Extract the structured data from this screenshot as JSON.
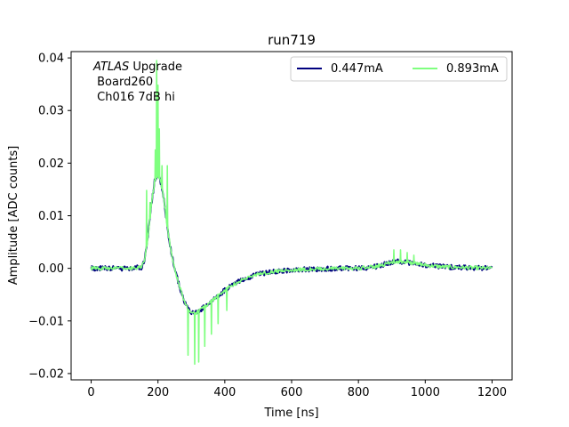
{
  "chart_data": {
    "type": "line",
    "title": "run719",
    "xlabel": "Time [ns]",
    "ylabel": "Amplitude [ADC counts]",
    "xlim": [
      -60,
      1260
    ],
    "ylim": [
      -0.0212,
      0.0412
    ],
    "xticks": [
      0,
      200,
      400,
      600,
      800,
      1000,
      1200
    ],
    "xtick_labels": [
      "0",
      "200",
      "400",
      "600",
      "800",
      "1000",
      "1200"
    ],
    "yticks": [
      -0.02,
      -0.01,
      0.0,
      0.01,
      0.02,
      0.03,
      0.04
    ],
    "ytick_labels": [
      "−0.02",
      "−0.01",
      "0.00",
      "0.01",
      "0.02",
      "0.03",
      "0.04"
    ],
    "grid": false,
    "legend_position": "top-right",
    "annotation": {
      "italic": "ATLAS",
      "rest": " Upgrade",
      "line2": " Board260",
      "line3": " Ch016 7dB hi"
    },
    "series": [
      {
        "name": "0.447mA",
        "color": "#00007f",
        "x": [
          0,
          50,
          100,
          150,
          160,
          170,
          180,
          190,
          200,
          210,
          220,
          230,
          240,
          250,
          260,
          270,
          280,
          290,
          300,
          310,
          320,
          330,
          340,
          350,
          360,
          380,
          400,
          420,
          440,
          460,
          480,
          500,
          550,
          600,
          650,
          700,
          750,
          800,
          850,
          880,
          900,
          920,
          950,
          1000,
          1050,
          1100,
          1150,
          1200
        ],
        "y": [
          0.0,
          0.0,
          0.0,
          0.0002,
          0.0015,
          0.006,
          0.012,
          0.0165,
          0.0178,
          0.016,
          0.012,
          0.007,
          0.003,
          0.0,
          -0.0025,
          -0.0045,
          -0.0065,
          -0.0078,
          -0.0083,
          -0.0085,
          -0.0082,
          -0.0078,
          -0.0072,
          -0.0068,
          -0.0062,
          -0.0052,
          -0.0042,
          -0.0033,
          -0.0026,
          -0.002,
          -0.0015,
          -0.0011,
          -0.0006,
          -0.0003,
          -0.0002,
          -0.0001,
          0.0,
          0.0,
          0.0003,
          0.0008,
          0.0012,
          0.0013,
          0.0011,
          0.0006,
          0.0003,
          0.0002,
          0.0001,
          0.0
        ]
      },
      {
        "name": "0.893mA",
        "color": "#7fff7f",
        "x": [
          0,
          50,
          100,
          150,
          160,
          170,
          180,
          190,
          200,
          210,
          220,
          230,
          240,
          250,
          260,
          270,
          280,
          290,
          300,
          310,
          320,
          330,
          340,
          350,
          360,
          380,
          400,
          420,
          440,
          460,
          480,
          500,
          550,
          600,
          650,
          700,
          750,
          800,
          850,
          880,
          900,
          920,
          950,
          1000,
          1050,
          1100,
          1150,
          1200
        ],
        "y": [
          0.0,
          0.0,
          0.0,
          0.0002,
          0.0015,
          0.006,
          0.012,
          0.0165,
          0.0178,
          0.016,
          0.012,
          0.007,
          0.003,
          0.0,
          -0.0025,
          -0.0045,
          -0.0065,
          -0.0078,
          -0.0083,
          -0.0085,
          -0.0082,
          -0.0078,
          -0.0072,
          -0.0068,
          -0.0062,
          -0.0052,
          -0.0042,
          -0.0033,
          -0.0026,
          -0.002,
          -0.0015,
          -0.0011,
          -0.0006,
          -0.0003,
          -0.0002,
          -0.0001,
          0.0,
          0.0,
          0.0003,
          0.0008,
          0.0012,
          0.0013,
          0.0011,
          0.0006,
          0.0003,
          0.0002,
          0.0001,
          0.0
        ],
        "spikes": [
          {
            "x": 165,
            "y": 0.0148
          },
          {
            "x": 175,
            "y": 0.0125
          },
          {
            "x": 192,
            "y": 0.0225
          },
          {
            "x": 196,
            "y": 0.0395
          },
          {
            "x": 200,
            "y": 0.0348
          },
          {
            "x": 204,
            "y": 0.0265
          },
          {
            "x": 212,
            "y": 0.0195
          },
          {
            "x": 228,
            "y": 0.0195
          },
          {
            "x": 290,
            "y": -0.0165
          },
          {
            "x": 310,
            "y": -0.0182
          },
          {
            "x": 322,
            "y": -0.0178
          },
          {
            "x": 340,
            "y": -0.0148
          },
          {
            "x": 360,
            "y": -0.0125
          },
          {
            "x": 380,
            "y": -0.0105
          },
          {
            "x": 405,
            "y": -0.008
          },
          {
            "x": 905,
            "y": 0.0035
          },
          {
            "x": 925,
            "y": 0.0035
          },
          {
            "x": 945,
            "y": 0.003
          },
          {
            "x": 965,
            "y": 0.0025
          }
        ]
      }
    ]
  }
}
